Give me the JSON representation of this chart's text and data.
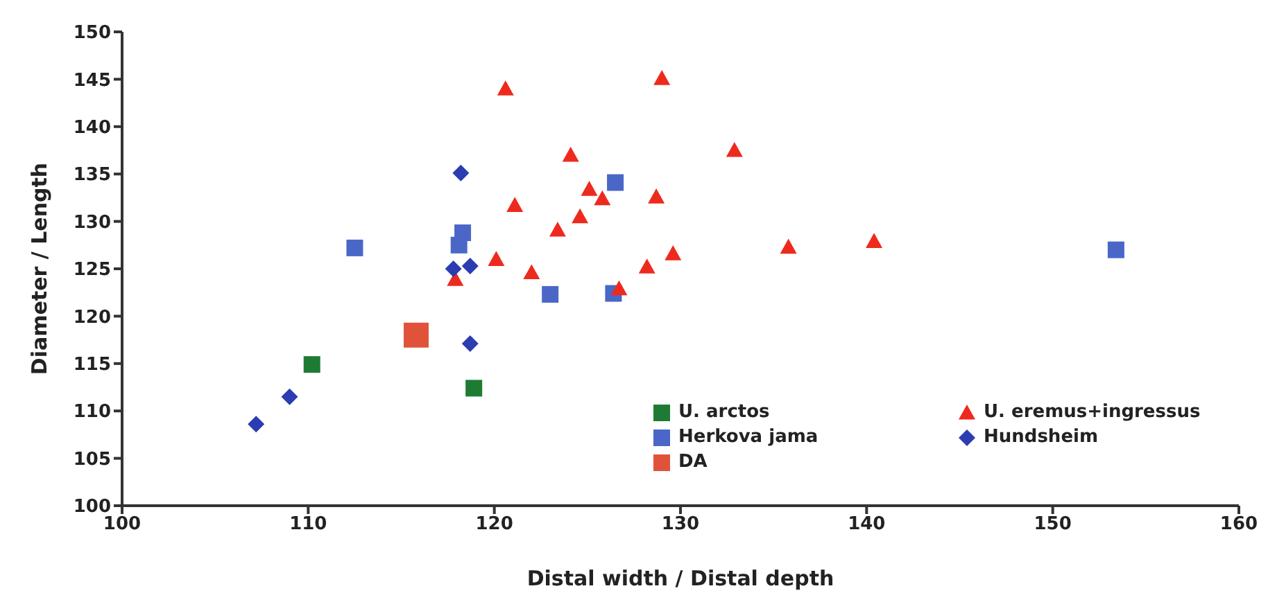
{
  "chart_data": {
    "type": "scatter",
    "xlabel": "Distal width / Distal depth",
    "ylabel": "Diameter / Length",
    "xlim": [
      100,
      160
    ],
    "xticks": [
      100,
      110,
      120,
      130,
      140,
      150,
      160
    ],
    "ylim": [
      100,
      150
    ],
    "yticks": [
      100,
      105,
      110,
      115,
      120,
      125,
      130,
      135,
      140,
      145,
      150
    ],
    "grid": false,
    "legend": "bottom right",
    "series": [
      {
        "name": "U. arctos",
        "color": "#1e7b34",
        "marker": "square",
        "x": [
          110.2,
          118.9
        ],
        "values": [
          114.9,
          112.4
        ]
      },
      {
        "name": "Herkova jama",
        "color": "#4a67c8",
        "marker": "square",
        "x": [
          112.5,
          118.3,
          118.1,
          126.5,
          123.0,
          126.4,
          153.4
        ],
        "values": [
          127.2,
          128.8,
          127.5,
          134.1,
          122.3,
          122.4,
          127.0
        ]
      },
      {
        "name": "DA",
        "color": "#e0533a",
        "marker": "square",
        "x": [
          115.8
        ],
        "values": [
          118.0
        ]
      },
      {
        "name": "U. eremus+ingressus",
        "color": "#ee2a1e",
        "marker": "triangle",
        "x": [
          120.6,
          129.0,
          132.9,
          124.1,
          125.1,
          125.8,
          128.7,
          121.1,
          124.6,
          123.4,
          129.6,
          135.8,
          140.4,
          128.2,
          126.7,
          122.0,
          120.1,
          117.9
        ],
        "values": [
          144.0,
          145.1,
          137.5,
          137.0,
          133.4,
          132.4,
          132.6,
          131.7,
          130.5,
          129.1,
          126.6,
          127.3,
          127.9,
          125.2,
          122.9,
          124.6,
          126.0,
          123.9
        ]
      },
      {
        "name": "Hundsheim",
        "color": "#2b3db0",
        "marker": "diamond",
        "x": [
          107.2,
          109.0,
          118.2,
          117.8,
          118.7,
          118.7
        ],
        "values": [
          108.6,
          111.5,
          135.1,
          125.0,
          125.3,
          117.1
        ]
      }
    ]
  }
}
